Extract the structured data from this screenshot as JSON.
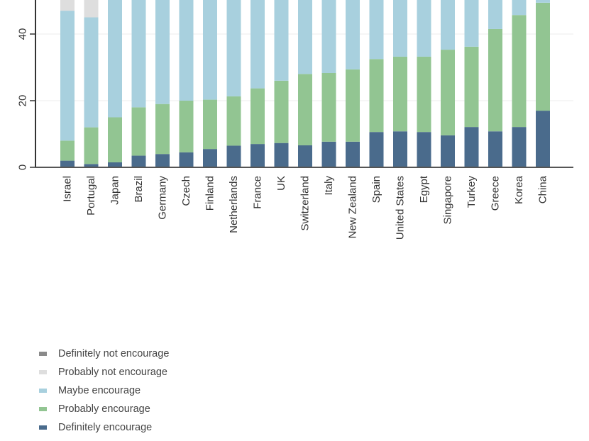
{
  "chart_data": {
    "type": "bar",
    "stacked": true,
    "title": "",
    "xlabel": "",
    "ylabel": "",
    "ylim": [
      0,
      50.5
    ],
    "yticks": [
      0,
      20,
      40
    ],
    "grid": true,
    "legend_position": "bottom-left",
    "categories": [
      "Israel",
      "Portugal",
      "Japan",
      "Brazil",
      "Germany",
      "Czech",
      "Finland",
      "Netherlands",
      "France",
      "UK",
      "Switzerland",
      "Italy",
      "New Zealand",
      "Spain",
      "United States",
      "Egypt",
      "Singapore",
      "Turkey",
      "Greece",
      "Korea",
      "China"
    ],
    "series": [
      {
        "name": "Definitely encourage",
        "color": "#4a6b8c",
        "values": [
          2,
          1,
          1.5,
          3.5,
          4,
          4.5,
          5.5,
          6.5,
          7,
          7.3,
          6.6,
          7.7,
          7.7,
          10.6,
          10.8,
          10.6,
          9.6,
          12.1,
          10.8,
          12.1,
          17
        ]
      },
      {
        "name": "Probably encourage",
        "color": "#92c592",
        "values": [
          6,
          11,
          13.5,
          14.5,
          15,
          15.5,
          14.8,
          14.8,
          16.7,
          18.7,
          21.4,
          20.6,
          21.7,
          21.9,
          22.4,
          22.6,
          25.7,
          24.1,
          30.7,
          33.6,
          32.4
        ]
      },
      {
        "name": "Maybe encourage",
        "color": "#a8d0de",
        "values": [
          39,
          33,
          36,
          33,
          32,
          31,
          31,
          30,
          28,
          26,
          24,
          23,
          22,
          19,
          18,
          18,
          16,
          15,
          10,
          6,
          2
        ]
      },
      {
        "name": "Probably not encourage",
        "color": "#dedede",
        "values": [
          8,
          8,
          0,
          0,
          0,
          0,
          0,
          0,
          0,
          0,
          0,
          0,
          0,
          0,
          0,
          0,
          0,
          0,
          0,
          0,
          0
        ]
      },
      {
        "name": "Definitely not encourage",
        "color": "#8a8a8a",
        "values": [
          0,
          0,
          0,
          0,
          0,
          0,
          0,
          0,
          0,
          0,
          0,
          0,
          0,
          0,
          0,
          0,
          0,
          0,
          0,
          0,
          0
        ]
      }
    ],
    "legend_order": [
      "Definitely not encourage",
      "Probably not encourage",
      "Maybe encourage",
      "Probably encourage",
      "Definitely encourage"
    ]
  }
}
